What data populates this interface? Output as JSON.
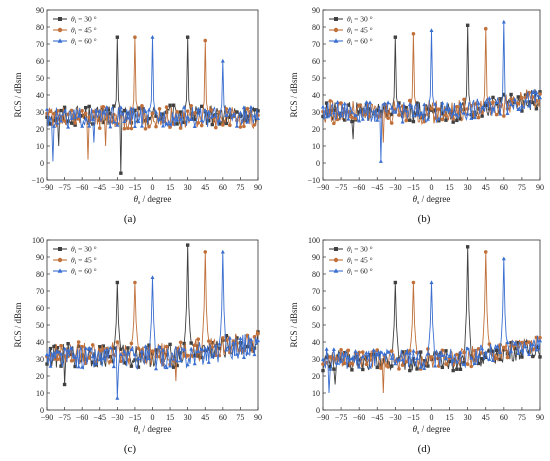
{
  "colors": {
    "s30": "#404040",
    "s45": "#c0703a",
    "s60": "#3a6fd0"
  },
  "chart_data": [
    {
      "type": "line",
      "panel_label": "(a)",
      "xlabel_main": "θ",
      "xlabel_sub": "s",
      "xlabel_rest": " / degree",
      "ylabel": "RCS / dBsm",
      "xlim": [
        -90,
        90
      ],
      "ylim": [
        -10,
        90
      ],
      "xticks": [
        -90,
        -75,
        -60,
        -45,
        -30,
        -15,
        0,
        15,
        30,
        45,
        60,
        75,
        90
      ],
      "yticks": [
        -10,
        0,
        10,
        20,
        30,
        40,
        50,
        60,
        70,
        80,
        90
      ],
      "legend_position": "top-left",
      "series": [
        {
          "name": "θi = 30 °",
          "key": "s30",
          "marker": "square",
          "base": 28,
          "amp": 6,
          "peaks": [
            [
              -30,
              74
            ],
            [
              30,
              74
            ]
          ],
          "dips": [
            [
              -27,
              -6
            ],
            [
              -80,
              10
            ]
          ]
        },
        {
          "name": "θi = 45 °",
          "key": "s45",
          "marker": "circle",
          "base": 27,
          "amp": 7,
          "peaks": [
            [
              -15,
              74
            ],
            [
              45,
              72
            ]
          ],
          "dips": [
            [
              -55,
              2
            ],
            [
              -40,
              10
            ]
          ]
        },
        {
          "name": "θi = 60 °",
          "key": "s60",
          "marker": "triangle",
          "base": 27,
          "amp": 6,
          "peaks": [
            [
              0,
              74
            ],
            [
              60,
              60
            ]
          ],
          "dips": [
            [
              -85,
              1
            ],
            [
              -50,
              12
            ]
          ]
        }
      ]
    },
    {
      "type": "line",
      "panel_label": "(b)",
      "xlabel_main": "θ",
      "xlabel_sub": "s",
      "xlabel_rest": " / degree",
      "ylabel": "RCS / dBsm",
      "xlim": [
        -90,
        90
      ],
      "ylim": [
        -10,
        90
      ],
      "xticks": [
        -90,
        -75,
        -60,
        -45,
        -30,
        -15,
        0,
        15,
        30,
        45,
        60,
        75,
        90
      ],
      "yticks": [
        -10,
        0,
        10,
        20,
        30,
        40,
        50,
        60,
        70,
        80,
        90
      ],
      "legend_position": "top-left",
      "series": [
        {
          "name": "θi = 30 °",
          "key": "s30",
          "marker": "square",
          "base": 30,
          "amp": 6,
          "peaks": [
            [
              -30,
              74
            ],
            [
              30,
              81
            ]
          ],
          "dips": [
            [
              -65,
              14
            ]
          ]
        },
        {
          "name": "θi = 45 °",
          "key": "s45",
          "marker": "circle",
          "base": 30,
          "amp": 7,
          "peaks": [
            [
              -15,
              76
            ],
            [
              45,
              79
            ]
          ],
          "dips": [
            [
              -40,
              12
            ]
          ]
        },
        {
          "name": "θi = 60 °",
          "key": "s60",
          "marker": "triangle",
          "base": 30,
          "amp": 6,
          "peaks": [
            [
              0,
              78
            ],
            [
              60,
              83
            ]
          ],
          "dips": [
            [
              -42,
              1
            ]
          ]
        }
      ]
    },
    {
      "type": "line",
      "panel_label": "(c)",
      "xlabel_main": "θ",
      "xlabel_sub": "s",
      "xlabel_rest": " / degree",
      "ylabel": "RCS / dBsm",
      "xlim": [
        -90,
        90
      ],
      "ylim": [
        0,
        100
      ],
      "xticks": [
        -90,
        -75,
        -60,
        -45,
        -30,
        -15,
        0,
        15,
        30,
        45,
        60,
        75,
        90
      ],
      "yticks": [
        0,
        10,
        20,
        30,
        40,
        50,
        60,
        70,
        80,
        90,
        100
      ],
      "legend_position": "top-left",
      "series": [
        {
          "name": "θi = 30 °",
          "key": "s30",
          "marker": "square",
          "base": 32,
          "amp": 7,
          "peaks": [
            [
              -30,
              75
            ],
            [
              30,
              97
            ]
          ],
          "dips": [
            [
              -75,
              15
            ]
          ]
        },
        {
          "name": "θi = 45 °",
          "key": "s45",
          "marker": "circle",
          "base": 33,
          "amp": 7,
          "peaks": [
            [
              -15,
              75
            ],
            [
              45,
              93
            ]
          ],
          "dips": [
            [
              20,
              17
            ]
          ]
        },
        {
          "name": "θi = 60 °",
          "key": "s60",
          "marker": "triangle",
          "base": 31,
          "amp": 7,
          "peaks": [
            [
              0,
              78
            ],
            [
              60,
              93
            ]
          ],
          "dips": [
            [
              -30,
              7
            ]
          ]
        }
      ]
    },
    {
      "type": "line",
      "panel_label": "(d)",
      "xlabel_main": "θ",
      "xlabel_sub": "s",
      "xlabel_rest": " / degree",
      "ylabel": "RCS / dBsm",
      "xlim": [
        -90,
        90
      ],
      "ylim": [
        0,
        100
      ],
      "xticks": [
        -90,
        -75,
        -60,
        -45,
        -30,
        -15,
        0,
        15,
        30,
        45,
        60,
        75,
        90
      ],
      "yticks": [
        0,
        10,
        20,
        30,
        40,
        50,
        60,
        70,
        80,
        90,
        100
      ],
      "legend_position": "top-left",
      "series": [
        {
          "name": "θi = 30 °",
          "key": "s30",
          "marker": "square",
          "base": 29,
          "amp": 6,
          "peaks": [
            [
              -30,
              75
            ],
            [
              30,
              96
            ]
          ],
          "dips": [
            [
              -80,
              15
            ]
          ]
        },
        {
          "name": "θi = 45 °",
          "key": "s45",
          "marker": "circle",
          "base": 30,
          "amp": 6,
          "peaks": [
            [
              -15,
              75
            ],
            [
              45,
              93
            ]
          ],
          "dips": [
            [
              -40,
              10
            ]
          ]
        },
        {
          "name": "θi = 60 °",
          "key": "s60",
          "marker": "triangle",
          "base": 30,
          "amp": 6,
          "peaks": [
            [
              0,
              75
            ],
            [
              60,
              89
            ]
          ],
          "dips": [
            [
              -85,
              10
            ]
          ]
        }
      ]
    }
  ]
}
